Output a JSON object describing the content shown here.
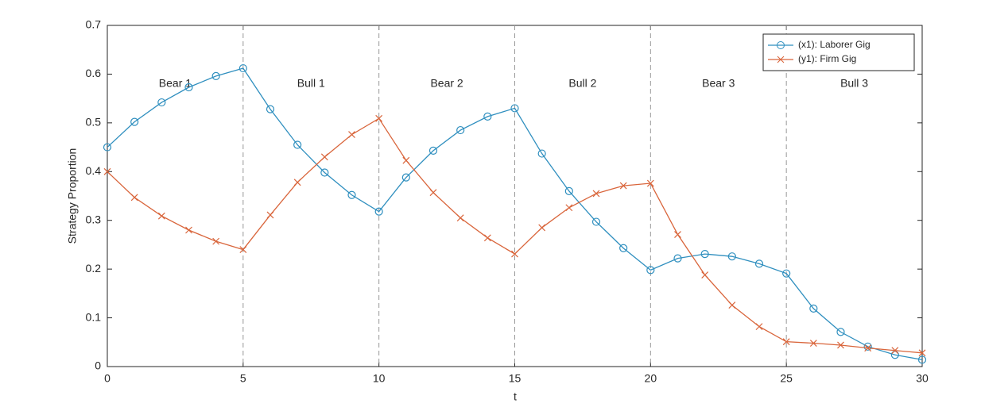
{
  "chart_data": {
    "type": "line",
    "x_label": "t",
    "y_label": "Strategy Proportion",
    "x": [
      0,
      1,
      2,
      3,
      4,
      5,
      6,
      7,
      8,
      9,
      10,
      11,
      12,
      13,
      14,
      15,
      16,
      17,
      18,
      19,
      20,
      21,
      22,
      23,
      24,
      25,
      26,
      27,
      28,
      29,
      30
    ],
    "series": [
      {
        "name": "(x1): Laborer Gig",
        "color": "#2f8fbf",
        "marker": "circle",
        "values": [
          0.45,
          0.502,
          0.542,
          0.573,
          0.596,
          0.612,
          0.528,
          0.455,
          0.398,
          0.352,
          0.318,
          0.388,
          0.443,
          0.485,
          0.513,
          0.53,
          0.437,
          0.36,
          0.297,
          0.243,
          0.198,
          0.222,
          0.231,
          0.226,
          0.211,
          0.191,
          0.119,
          0.071,
          0.041,
          0.024,
          0.014
        ]
      },
      {
        "name": "(y1): Firm Gig",
        "color": "#d9653b",
        "marker": "x",
        "values": [
          0.4,
          0.347,
          0.309,
          0.28,
          0.257,
          0.24,
          0.311,
          0.378,
          0.43,
          0.476,
          0.509,
          0.423,
          0.357,
          0.305,
          0.264,
          0.231,
          0.285,
          0.326,
          0.355,
          0.371,
          0.376,
          0.271,
          0.188,
          0.126,
          0.082,
          0.051,
          0.048,
          0.044,
          0.038,
          0.033,
          0.028
        ]
      }
    ],
    "phase_boundaries": [
      5,
      10,
      15,
      20,
      25
    ],
    "phases": [
      "Bear 1",
      "Bull 1",
      "Bear 2",
      "Bull 2",
      "Bear 3",
      "Bull 3"
    ],
    "xlim": [
      0,
      30
    ],
    "ylim": [
      0,
      0.7
    ],
    "xticks": [
      0,
      5,
      10,
      15,
      20,
      25,
      30
    ],
    "yticks": [
      0,
      0.1,
      0.2,
      0.3,
      0.4,
      0.5,
      0.6,
      0.7
    ],
    "legend": "top-right"
  }
}
